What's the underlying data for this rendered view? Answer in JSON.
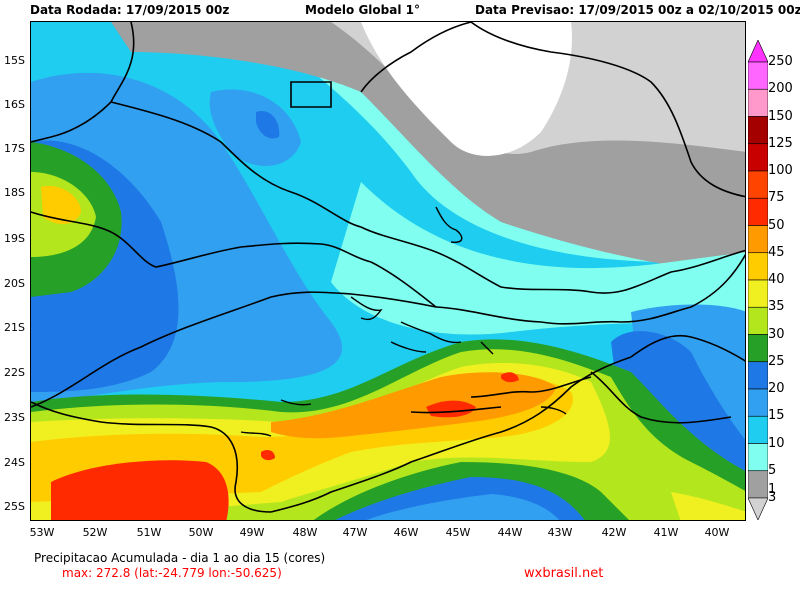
{
  "header": {
    "run_label": "Data Rodada: 17/09/2015 00z",
    "model_label": "Modelo Global 1°",
    "forecast_label": "Data Previsao: 17/09/2015 00z a 02/10/2015 00z"
  },
  "map": {
    "lat_labels": [
      "15S",
      "16S",
      "17S",
      "18S",
      "19S",
      "20S",
      "21S",
      "22S",
      "23S",
      "24S",
      "25S"
    ],
    "lon_labels": [
      "53W",
      "52W",
      "51W",
      "50W",
      "49W",
      "48W",
      "47W",
      "46W",
      "45W",
      "44W",
      "43W",
      "42W",
      "41W",
      "40W"
    ]
  },
  "legend": {
    "items": [
      {
        "label": "250",
        "color": "#ff33ff"
      },
      {
        "label": "200",
        "color": "#ff66ff"
      },
      {
        "label": "150",
        "color": "#ff99cc"
      },
      {
        "label": "125",
        "color": "#a50000"
      },
      {
        "label": "100",
        "color": "#c80000"
      },
      {
        "label": "75",
        "color": "#ff4400"
      },
      {
        "label": "50",
        "color": "#ff2a00"
      },
      {
        "label": "45",
        "color": "#ff9a00"
      },
      {
        "label": "40",
        "color": "#ffcc00"
      },
      {
        "label": "35",
        "color": "#f0f020"
      },
      {
        "label": "30",
        "color": "#b4e61e"
      },
      {
        "label": "25",
        "color": "#27a027"
      },
      {
        "label": "20",
        "color": "#1e78e6"
      },
      {
        "label": "15",
        "color": "#32a0f0"
      },
      {
        "label": "10",
        "color": "#1ecdf0"
      },
      {
        "label": "5",
        "color": "#80fff0"
      },
      {
        "label": "3",
        "color": "#a0a0a0"
      },
      {
        "label": "1",
        "color": "#d2d2d2"
      }
    ]
  },
  "footer": {
    "title": "Precipitacao Acumulada - dia 1 ao dia 15 (cores)",
    "max_label": "max: 272.8 (lat:-24.779 lon:-50.625)",
    "site": "wxbrasil.net"
  }
}
